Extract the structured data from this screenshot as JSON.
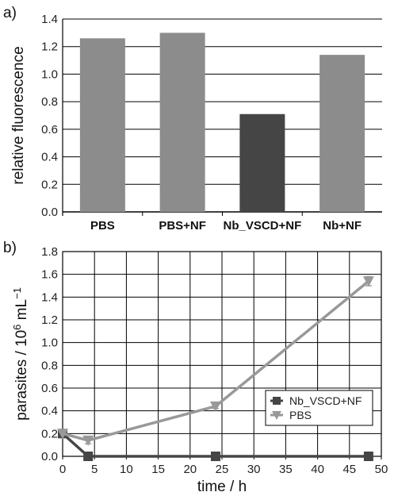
{
  "chart_data": [
    {
      "panel_label": "a)",
      "type": "bar",
      "categories": [
        "PBS",
        "PBS+NF",
        "Nb_VSCD+NF",
        "Nb+NF"
      ],
      "values": [
        1.26,
        1.3,
        0.71,
        1.14
      ],
      "bar_colors": [
        "#8c8c8c",
        "#8c8c8c",
        "#454545",
        "#8c8c8c"
      ],
      "ylabel": "relative fluorescence",
      "ylim": [
        0,
        1.4
      ],
      "yticks": [
        "0.0",
        "0.2",
        "0.4",
        "0.6",
        "0.8",
        "1.0",
        "1.2",
        "1.4"
      ],
      "grid": "horizontal"
    },
    {
      "panel_label": "b)",
      "type": "line",
      "xlabel": "time / h",
      "ylabel_main": "parasites / 10",
      "ylabel_sup1": "6",
      "ylabel_mid": " mL",
      "ylabel_sup2": "−1",
      "xlim": [
        0,
        50
      ],
      "ylim": [
        0,
        1.8
      ],
      "xticks": [
        "0",
        "5",
        "10",
        "15",
        "20",
        "25",
        "30",
        "35",
        "40",
        "45",
        "50"
      ],
      "yticks": [
        "0.0",
        "0.2",
        "0.4",
        "0.6",
        "0.8",
        "1.0",
        "1.2",
        "1.4",
        "1.6",
        "1.8"
      ],
      "grid": "both",
      "legend_position": "right",
      "series": [
        {
          "name": "Nb_VSCD+NF",
          "color": "#454545",
          "marker": "square",
          "x": [
            0,
            4,
            24,
            48
          ],
          "y": [
            0.2,
            0.0,
            0.0,
            0.0
          ],
          "yerr": [
            0,
            0,
            0,
            0
          ]
        },
        {
          "name": "PBS",
          "color": "#999999",
          "marker": "triangle-down",
          "x": [
            0,
            4,
            24,
            48
          ],
          "y": [
            0.2,
            0.14,
            0.44,
            1.54
          ],
          "yerr": [
            0,
            0.03,
            0.02,
            0.04
          ]
        }
      ]
    }
  ]
}
